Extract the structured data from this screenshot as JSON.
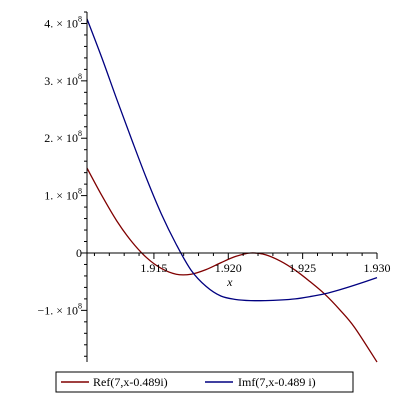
{
  "chart_data": {
    "type": "line",
    "xlabel": "x",
    "ylabel": "",
    "xlim": [
      1.9105,
      1.93
    ],
    "ylim": [
      -190000000,
      420000000
    ],
    "x_ticks": [
      {
        "value": 1.915,
        "label": "1.915"
      },
      {
        "value": 1.92,
        "label": "1.920"
      },
      {
        "value": 1.925,
        "label": "1.925"
      },
      {
        "value": 1.93,
        "label": "1.930"
      }
    ],
    "y_ticks": [
      {
        "value": 400000000,
        "mant": "4. × 10",
        "exp": "8"
      },
      {
        "value": 300000000,
        "mant": "3. × 10",
        "exp": "8"
      },
      {
        "value": 200000000,
        "mant": "2. × 10",
        "exp": "8"
      },
      {
        "value": 100000000,
        "mant": "1. × 10",
        "exp": "8"
      },
      {
        "value": 0,
        "mant": "0",
        "exp": ""
      },
      {
        "value": -100000000,
        "mant": "−1. × 10",
        "exp": "8"
      }
    ],
    "series": [
      {
        "name": "Ref(7,x-0.489i)",
        "color": "#800000",
        "x": [
          1.9105,
          1.9115,
          1.9125,
          1.9135,
          1.9145,
          1.9155,
          1.9165,
          1.9175,
          1.9185,
          1.9195,
          1.9205,
          1.9215,
          1.9225,
          1.9235,
          1.9245,
          1.9255,
          1.9265,
          1.9275,
          1.9285,
          1.93
        ],
        "values": [
          148000000,
          100000000,
          56000000,
          20000000,
          -8000000,
          -27000000,
          -37000000,
          -37000000,
          -29000000,
          -17000000,
          -6000000,
          0,
          -3000000,
          -14000000,
          -30000000,
          -50000000,
          -72000000,
          -99000000,
          -130000000,
          -190000000
        ]
      },
      {
        "name": "Imf(7,x-0.489 i)",
        "color": "#000080",
        "x": [
          1.9105,
          1.9115,
          1.9125,
          1.9135,
          1.9145,
          1.9155,
          1.9165,
          1.9175,
          1.9185,
          1.9195,
          1.9205,
          1.9215,
          1.9225,
          1.9235,
          1.9245,
          1.9255,
          1.9265,
          1.9275,
          1.9285,
          1.93
        ],
        "values": [
          408000000,
          340000000,
          268000000,
          198000000,
          130000000,
          68000000,
          15000000,
          -30000000,
          -58000000,
          -75000000,
          -81000000,
          -83000000,
          -83000000,
          -82000000,
          -80000000,
          -76000000,
          -71000000,
          -64000000,
          -56000000,
          -43000000
        ]
      }
    ],
    "legend": "bottom"
  }
}
